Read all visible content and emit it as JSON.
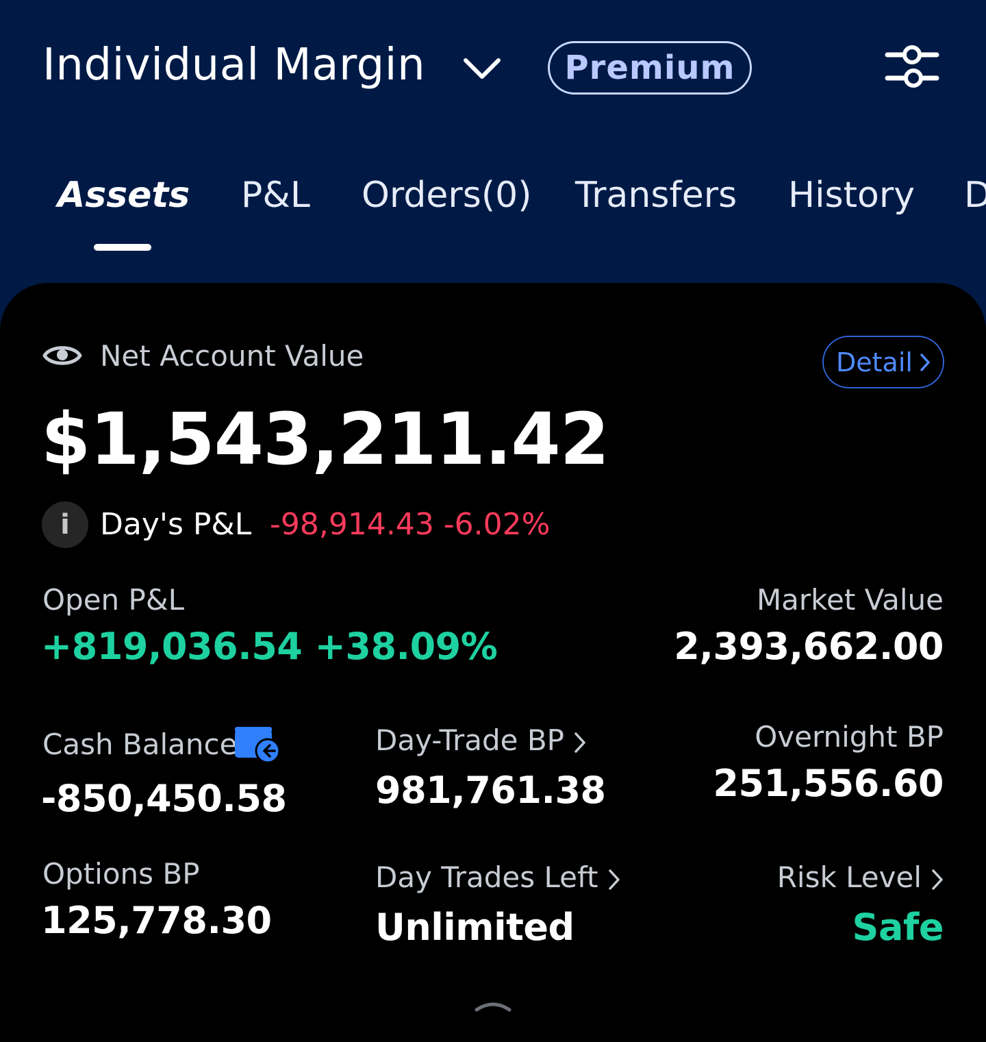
{
  "header": {
    "account_title": "Individual Margin",
    "premium_badge": "Premium",
    "icons": {
      "chevron": "chevron-down-icon",
      "settings": "sliders-icon"
    }
  },
  "tabs": [
    {
      "label": "Assets",
      "active": true
    },
    {
      "label": "P&L",
      "active": false
    },
    {
      "label": "Orders(0)",
      "active": false
    },
    {
      "label": "Transfers",
      "active": false
    },
    {
      "label": "History",
      "active": false
    },
    {
      "label": "D",
      "active": false
    }
  ],
  "summary": {
    "net_account_value_label": "Net Account Value",
    "net_account_value": "$1,543,211.42",
    "detail_button": "Detail",
    "days_pl_label": "Day's P&L",
    "days_pl_value": "-98,914.43 -6.02%",
    "info_glyph": "i"
  },
  "metrics": {
    "open_pl": {
      "label": "Open P&L",
      "value": "+819,036.54 +38.09%"
    },
    "market_value": {
      "label": "Market Value",
      "value": "2,393,662.00"
    },
    "cash_balance": {
      "label": "Cash Balance",
      "value": "-850,450.58"
    },
    "day_trade_bp": {
      "label": "Day-Trade BP",
      "value": "981,761.38"
    },
    "overnight_bp": {
      "label": "Overnight BP",
      "value": "251,556.60"
    },
    "options_bp": {
      "label": "Options BP",
      "value": "125,778.30"
    },
    "day_trades_left": {
      "label": "Day Trades Left",
      "value": "Unlimited"
    },
    "risk_level": {
      "label": "Risk Level",
      "value": "Safe"
    }
  },
  "colors": {
    "header_bg": "#001a45",
    "negative": "#ff3b5c",
    "positive": "#1ed1a0",
    "accent_blue": "#4f8bff"
  }
}
